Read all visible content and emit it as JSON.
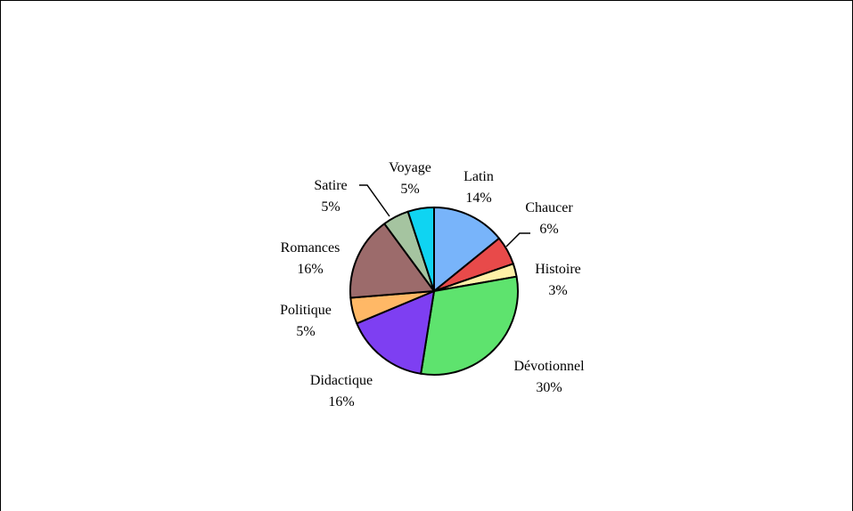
{
  "chart_data": {
    "type": "pie",
    "title": "",
    "start_angle_deg": 0,
    "direction": "clockwise",
    "slices": [
      {
        "label": "Latin",
        "value": 14,
        "percent_label": "14%",
        "color": "#78b4fa"
      },
      {
        "label": "Chaucer",
        "value": 5.5,
        "percent_label": "6%",
        "color": "#e84a4a"
      },
      {
        "label": "Histoire",
        "value": 2.5,
        "percent_label": "3%",
        "color": "#fff1a8"
      },
      {
        "label": "Dévotionnel",
        "value": 30,
        "percent_label": "30%",
        "color": "#5ee36e"
      },
      {
        "label": "Didactique",
        "value": 16,
        "percent_label": "16%",
        "color": "#7e3ff2"
      },
      {
        "label": "Politique",
        "value": 5,
        "percent_label": "5%",
        "color": "#ffb866"
      },
      {
        "label": "Romances",
        "value": 16,
        "percent_label": "16%",
        "color": "#9c6b6b"
      },
      {
        "label": "Satire",
        "value": 5,
        "percent_label": "5%",
        "color": "#a5c4a0"
      },
      {
        "label": "Voyage",
        "value": 5,
        "percent_label": "5%",
        "color": "#0fd4f2"
      }
    ],
    "legend": "none",
    "labels": "outside"
  }
}
